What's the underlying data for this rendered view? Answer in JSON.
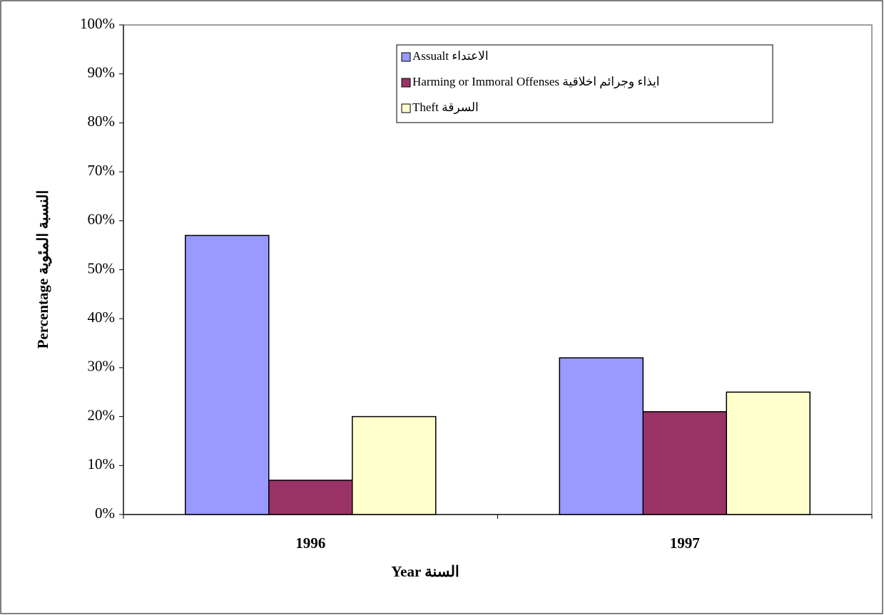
{
  "chart_data": {
    "type": "bar",
    "x_label": "Year  السنة",
    "y_label": "Percentage   النسبة المئوية",
    "categories": [
      "1996",
      "1997"
    ],
    "series": [
      {
        "name": "Assualt الاعتداء",
        "color": "#9999ff",
        "values": [
          57,
          32
        ]
      },
      {
        "name": "Harming or Immoral Offenses  ايذاء وجرائم اخلاقية",
        "color": "#993366",
        "values": [
          7,
          21
        ]
      },
      {
        "name": "Theft السرقة",
        "color": "#ffffcc",
        "values": [
          20,
          25
        ]
      }
    ],
    "ylim": [
      0,
      100
    ],
    "yticks": [
      {
        "value": 0,
        "label": "0%"
      },
      {
        "value": 10,
        "label": "10%"
      },
      {
        "value": 20,
        "label": "20%"
      },
      {
        "value": 30,
        "label": "30%"
      },
      {
        "value": 40,
        "label": "40%"
      },
      {
        "value": 50,
        "label": "50%"
      },
      {
        "value": 60,
        "label": "60%"
      },
      {
        "value": 70,
        "label": "70%"
      },
      {
        "value": 80,
        "label": "80%"
      },
      {
        "value": 90,
        "label": "90%"
      },
      {
        "value": 100,
        "label": "100%"
      }
    ],
    "grid": false,
    "legend": "top-right"
  }
}
